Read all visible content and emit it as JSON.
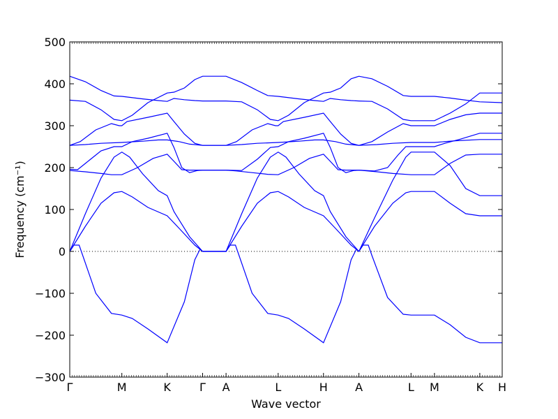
{
  "chart_data": {
    "type": "line",
    "title": "",
    "xlabel": "Wave vector",
    "ylabel": "Frequency (cm⁻¹)",
    "ylim": [
      -300,
      500
    ],
    "yticks": [
      -300,
      -200,
      -100,
      0,
      100,
      200,
      300,
      400,
      500
    ],
    "ytick_labels": [
      "−300",
      "−200",
      "−100",
      "0",
      "100",
      "200",
      "300",
      "400",
      "500"
    ],
    "path_ticks": [
      {
        "label": "Γ",
        "x": 0.0
      },
      {
        "label": "M",
        "x": 1.0
      },
      {
        "label": "K",
        "x": 1.87
      },
      {
        "label": "Γ",
        "x": 2.55
      },
      {
        "label": "A",
        "x": 3.0
      },
      {
        "label": "L",
        "x": 4.0
      },
      {
        "label": "H",
        "x": 4.87
      },
      {
        "label": "A",
        "x": 5.55
      },
      {
        "label": "L",
        "x": 6.55
      },
      {
        "label": "M",
        "x": 7.0
      },
      {
        "label": "K",
        "x": 7.87
      },
      {
        "label": "H",
        "x": 8.3
      }
    ],
    "xlim": [
      0,
      8.3
    ],
    "zero_line": true,
    "line_color": "#0000ff",
    "series": [
      {
        "values": [
          [
            0,
            0
          ],
          [
            0.08,
            15
          ],
          [
            0.18,
            15
          ],
          [
            0.25,
            -10
          ],
          [
            0.5,
            -100
          ],
          [
            0.8,
            -148
          ],
          [
            1.0,
            -152
          ],
          [
            1.2,
            -160
          ],
          [
            1.5,
            -185
          ],
          [
            1.87,
            -218
          ],
          [
            2.2,
            -120
          ],
          [
            2.4,
            -20
          ],
          [
            2.5,
            5
          ],
          [
            2.55,
            0
          ],
          [
            2.8,
            0
          ],
          [
            3.0,
            0
          ],
          [
            3.08,
            15
          ],
          [
            3.18,
            15
          ],
          [
            3.25,
            -10
          ],
          [
            3.5,
            -100
          ],
          [
            3.8,
            -148
          ],
          [
            4.0,
            -152
          ],
          [
            4.2,
            -160
          ],
          [
            4.5,
            -185
          ],
          [
            4.87,
            -218
          ],
          [
            5.2,
            -120
          ],
          [
            5.4,
            -20
          ],
          [
            5.5,
            5
          ],
          [
            5.55,
            0
          ],
          [
            5.63,
            15
          ],
          [
            5.73,
            15
          ],
          [
            5.8,
            -10
          ],
          [
            6.1,
            -110
          ],
          [
            6.4,
            -150
          ],
          [
            6.55,
            -152
          ],
          [
            7.0,
            -152
          ],
          [
            7.3,
            -175
          ],
          [
            7.6,
            -205
          ],
          [
            7.87,
            -218
          ],
          [
            8.3,
            -218
          ]
        ]
      },
      {
        "values": [
          [
            0,
            0
          ],
          [
            0.3,
            60
          ],
          [
            0.6,
            115
          ],
          [
            0.85,
            140
          ],
          [
            1.0,
            143
          ],
          [
            1.2,
            130
          ],
          [
            1.5,
            105
          ],
          [
            1.87,
            85
          ],
          [
            2.1,
            55
          ],
          [
            2.4,
            15
          ],
          [
            2.55,
            0
          ],
          [
            3.0,
            0
          ],
          [
            3.3,
            60
          ],
          [
            3.6,
            115
          ],
          [
            3.85,
            140
          ],
          [
            4.0,
            143
          ],
          [
            4.2,
            130
          ],
          [
            4.5,
            105
          ],
          [
            4.87,
            85
          ],
          [
            5.1,
            55
          ],
          [
            5.4,
            15
          ],
          [
            5.55,
            0
          ],
          [
            5.85,
            60
          ],
          [
            6.2,
            115
          ],
          [
            6.45,
            140
          ],
          [
            6.55,
            143
          ],
          [
            7.0,
            143
          ],
          [
            7.3,
            115
          ],
          [
            7.6,
            90
          ],
          [
            7.87,
            85
          ],
          [
            8.3,
            85
          ]
        ]
      },
      {
        "values": [
          [
            0,
            0
          ],
          [
            0.3,
            90
          ],
          [
            0.6,
            175
          ],
          [
            0.85,
            225
          ],
          [
            1.0,
            237
          ],
          [
            1.15,
            225
          ],
          [
            1.4,
            185
          ],
          [
            1.7,
            145
          ],
          [
            1.87,
            133
          ],
          [
            2.0,
            95
          ],
          [
            2.3,
            35
          ],
          [
            2.55,
            0
          ],
          [
            3.0,
            0
          ],
          [
            3.3,
            90
          ],
          [
            3.6,
            175
          ],
          [
            3.85,
            225
          ],
          [
            4.0,
            237
          ],
          [
            4.15,
            225
          ],
          [
            4.4,
            185
          ],
          [
            4.7,
            145
          ],
          [
            4.87,
            133
          ],
          [
            5.0,
            95
          ],
          [
            5.3,
            35
          ],
          [
            5.55,
            0
          ],
          [
            5.85,
            80
          ],
          [
            6.2,
            170
          ],
          [
            6.45,
            225
          ],
          [
            6.55,
            237
          ],
          [
            7.0,
            237
          ],
          [
            7.3,
            205
          ],
          [
            7.6,
            150
          ],
          [
            7.87,
            133
          ],
          [
            8.3,
            133
          ]
        ]
      },
      {
        "values": [
          [
            0,
            193
          ],
          [
            0.3,
            190
          ],
          [
            0.6,
            186
          ],
          [
            0.8,
            183
          ],
          [
            1.0,
            183
          ],
          [
            1.3,
            200
          ],
          [
            1.6,
            222
          ],
          [
            1.87,
            232
          ],
          [
            2.0,
            215
          ],
          [
            2.15,
            195
          ],
          [
            2.3,
            194
          ],
          [
            2.55,
            194
          ],
          [
            3.0,
            194
          ],
          [
            3.2,
            192
          ],
          [
            3.5,
            188
          ],
          [
            3.8,
            184
          ],
          [
            4.0,
            183
          ],
          [
            4.3,
            200
          ],
          [
            4.6,
            222
          ],
          [
            4.87,
            232
          ],
          [
            5.0,
            215
          ],
          [
            5.15,
            195
          ],
          [
            5.3,
            194
          ],
          [
            5.55,
            194
          ],
          [
            5.9,
            190
          ],
          [
            6.2,
            186
          ],
          [
            6.55,
            183
          ],
          [
            7.0,
            183
          ],
          [
            7.3,
            210
          ],
          [
            7.6,
            230
          ],
          [
            7.87,
            232
          ],
          [
            8.3,
            232
          ]
        ]
      },
      {
        "values": [
          [
            0,
            196
          ],
          [
            0.15,
            195
          ],
          [
            0.3,
            210
          ],
          [
            0.6,
            240
          ],
          [
            0.85,
            250
          ],
          [
            1.0,
            250
          ],
          [
            1.2,
            262
          ],
          [
            1.5,
            270
          ],
          [
            1.87,
            282
          ],
          [
            2.0,
            248
          ],
          [
            2.15,
            200
          ],
          [
            2.3,
            188
          ],
          [
            2.45,
            193
          ],
          [
            2.55,
            194
          ],
          [
            3.0,
            194
          ],
          [
            3.3,
            193
          ],
          [
            3.6,
            220
          ],
          [
            3.85,
            248
          ],
          [
            4.0,
            250
          ],
          [
            4.2,
            262
          ],
          [
            4.5,
            270
          ],
          [
            4.87,
            282
          ],
          [
            5.0,
            248
          ],
          [
            5.15,
            200
          ],
          [
            5.3,
            188
          ],
          [
            5.45,
            193
          ],
          [
            5.55,
            194
          ],
          [
            5.85,
            192
          ],
          [
            6.1,
            200
          ],
          [
            6.3,
            230
          ],
          [
            6.45,
            250
          ],
          [
            6.55,
            250
          ],
          [
            7.0,
            250
          ],
          [
            7.2,
            258
          ],
          [
            7.5,
            268
          ],
          [
            7.87,
            282
          ],
          [
            8.3,
            282
          ]
        ]
      },
      {
        "values": [
          [
            0,
            253
          ],
          [
            0.3,
            255
          ],
          [
            0.6,
            258
          ],
          [
            1.0,
            260
          ],
          [
            1.4,
            263
          ],
          [
            1.7,
            266
          ],
          [
            1.87,
            266
          ],
          [
            2.1,
            262
          ],
          [
            2.3,
            256
          ],
          [
            2.55,
            253
          ],
          [
            3.0,
            253
          ],
          [
            3.3,
            255
          ],
          [
            3.6,
            258
          ],
          [
            4.0,
            260
          ],
          [
            4.4,
            263
          ],
          [
            4.7,
            266
          ],
          [
            4.87,
            266
          ],
          [
            5.1,
            262
          ],
          [
            5.3,
            256
          ],
          [
            5.55,
            253
          ],
          [
            5.9,
            255
          ],
          [
            6.2,
            258
          ],
          [
            6.55,
            260
          ],
          [
            7.0,
            260
          ],
          [
            7.4,
            264
          ],
          [
            7.87,
            267
          ],
          [
            8.3,
            267
          ]
        ]
      },
      {
        "values": [
          [
            0,
            253
          ],
          [
            0.2,
            262
          ],
          [
            0.5,
            290
          ],
          [
            0.8,
            305
          ],
          [
            0.95,
            300
          ],
          [
            1.0,
            300
          ],
          [
            1.1,
            310
          ],
          [
            1.5,
            320
          ],
          [
            1.87,
            330
          ],
          [
            2.0,
            310
          ],
          [
            2.2,
            280
          ],
          [
            2.4,
            258
          ],
          [
            2.55,
            253
          ],
          [
            3.0,
            253
          ],
          [
            3.2,
            262
          ],
          [
            3.5,
            290
          ],
          [
            3.8,
            305
          ],
          [
            3.95,
            300
          ],
          [
            4.0,
            300
          ],
          [
            4.1,
            310
          ],
          [
            4.5,
            320
          ],
          [
            4.87,
            330
          ],
          [
            5.0,
            310
          ],
          [
            5.2,
            280
          ],
          [
            5.4,
            258
          ],
          [
            5.55,
            253
          ],
          [
            5.8,
            262
          ],
          [
            6.1,
            285
          ],
          [
            6.4,
            305
          ],
          [
            6.55,
            300
          ],
          [
            7.0,
            300
          ],
          [
            7.3,
            315
          ],
          [
            7.6,
            326
          ],
          [
            7.87,
            330
          ],
          [
            8.3,
            330
          ]
        ]
      },
      {
        "values": [
          [
            0,
            361
          ],
          [
            0.3,
            358
          ],
          [
            0.6,
            338
          ],
          [
            0.85,
            315
          ],
          [
            1.0,
            312
          ],
          [
            1.2,
            325
          ],
          [
            1.5,
            355
          ],
          [
            1.87,
            378
          ],
          [
            2.0,
            380
          ],
          [
            2.2,
            390
          ],
          [
            2.4,
            410
          ],
          [
            2.55,
            418
          ],
          [
            3.0,
            418
          ],
          [
            3.3,
            403
          ],
          [
            3.6,
            384
          ],
          [
            3.8,
            372
          ],
          [
            4.0,
            370
          ],
          [
            4.4,
            364
          ],
          [
            4.7,
            360
          ],
          [
            4.87,
            358
          ],
          [
            5.0,
            365
          ],
          [
            5.2,
            362
          ],
          [
            5.4,
            360
          ],
          [
            5.55,
            359
          ],
          [
            5.8,
            358
          ],
          [
            6.1,
            340
          ],
          [
            6.4,
            315
          ],
          [
            6.55,
            312
          ],
          [
            7.0,
            312
          ],
          [
            7.3,
            330
          ],
          [
            7.6,
            352
          ],
          [
            7.87,
            378
          ],
          [
            8.3,
            378
          ]
        ]
      },
      {
        "values": [
          [
            0,
            418
          ],
          [
            0.3,
            405
          ],
          [
            0.6,
            384
          ],
          [
            0.85,
            371
          ],
          [
            1.0,
            370
          ],
          [
            1.4,
            364
          ],
          [
            1.7,
            360
          ],
          [
            1.87,
            358
          ],
          [
            2.0,
            365
          ],
          [
            2.2,
            362
          ],
          [
            2.4,
            360
          ],
          [
            2.55,
            359
          ],
          [
            3.0,
            359
          ],
          [
            3.3,
            357
          ],
          [
            3.6,
            338
          ],
          [
            3.85,
            315
          ],
          [
            4.0,
            312
          ],
          [
            4.2,
            325
          ],
          [
            4.5,
            355
          ],
          [
            4.87,
            378
          ],
          [
            5.0,
            380
          ],
          [
            5.2,
            390
          ],
          [
            5.4,
            412
          ],
          [
            5.55,
            418
          ],
          [
            5.8,
            412
          ],
          [
            6.1,
            394
          ],
          [
            6.4,
            372
          ],
          [
            6.55,
            370
          ],
          [
            7.0,
            370
          ],
          [
            7.3,
            366
          ],
          [
            7.6,
            361
          ],
          [
            7.87,
            357
          ],
          [
            8.3,
            355
          ]
        ]
      }
    ]
  }
}
